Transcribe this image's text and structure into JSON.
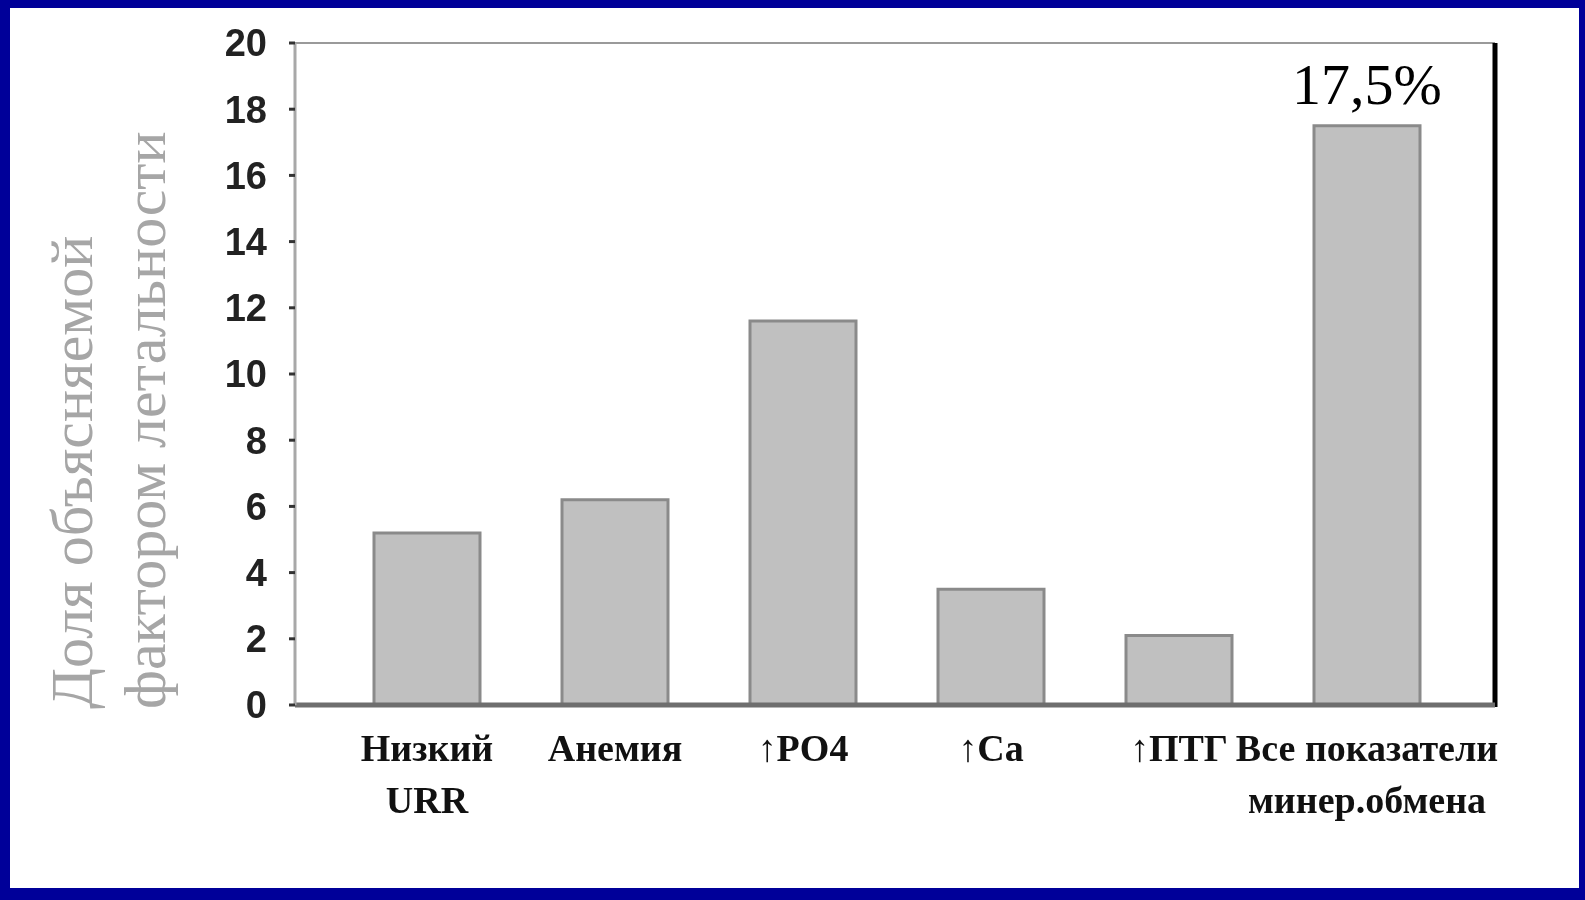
{
  "chart_data": {
    "type": "bar",
    "ylabel": "Доля объясняемой\nфактором летальности",
    "categories": [
      "Низкий\nURR",
      "Анемия",
      "↑PO4",
      "↑Ca",
      "↑ПТГ",
      "Все показатели\nминер.обмена"
    ],
    "values": [
      5.2,
      6.2,
      11.6,
      3.5,
      2.1,
      17.5
    ],
    "value_labels": [
      null,
      null,
      null,
      null,
      null,
      "17,5%"
    ],
    "color": "#c0c0c0",
    "ylim": [
      0,
      20
    ],
    "yticks": [
      0,
      2,
      4,
      6,
      8,
      10,
      12,
      14,
      16,
      18,
      20
    ]
  }
}
